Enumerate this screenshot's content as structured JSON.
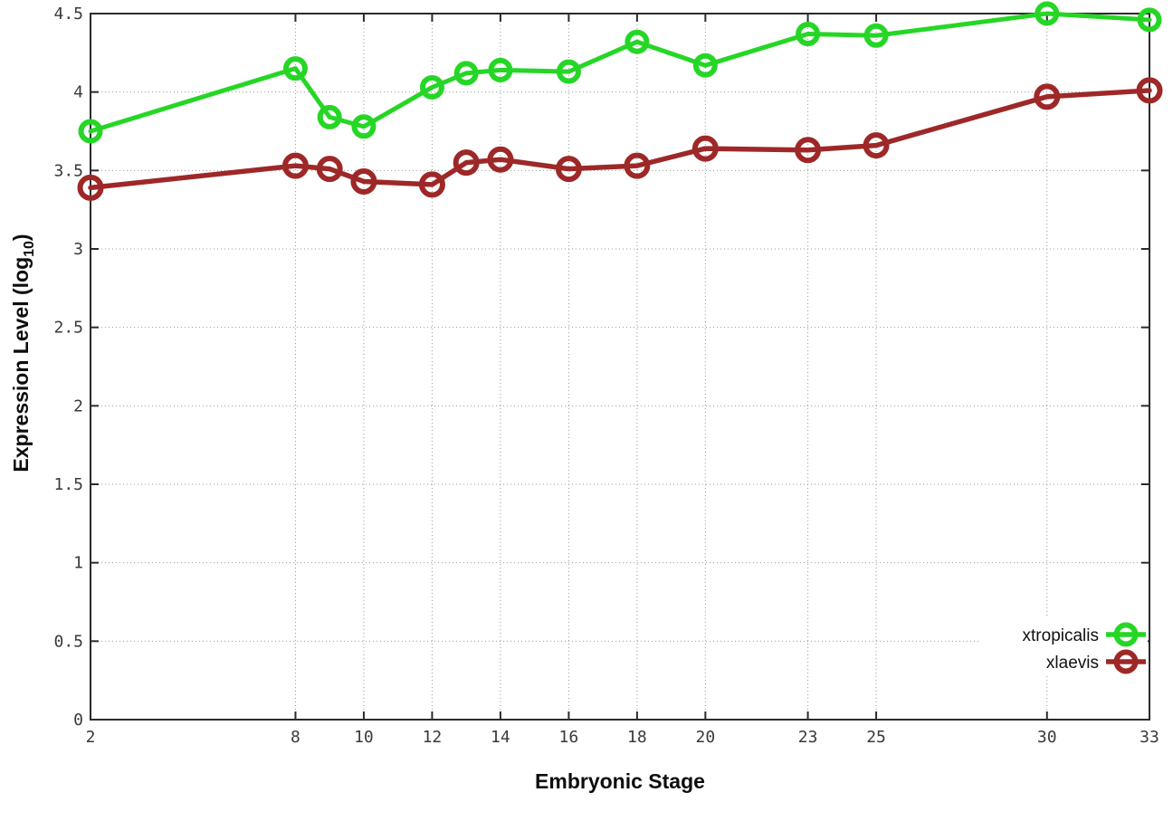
{
  "figure": {
    "xlabel": "Embryonic Stage",
    "ylabel_parts": [
      {
        "text": "Expression Level (log"
      },
      {
        "text": "10",
        "sub": true
      },
      {
        "text": ")"
      }
    ]
  },
  "chart_data": {
    "type": "line",
    "title": "",
    "xlabel": "Embryonic Stage",
    "ylabel": "Expression Level (log10)",
    "x": [
      2,
      8,
      9,
      10,
      12,
      13,
      14,
      16,
      18,
      20,
      23,
      25,
      30,
      33
    ],
    "series": [
      {
        "name": "xtropicalis",
        "color": "#26d626",
        "values": [
          3.75,
          4.15,
          3.84,
          3.78,
          4.03,
          4.12,
          4.14,
          4.13,
          4.32,
          4.17,
          4.37,
          4.36,
          4.5,
          4.46
        ]
      },
      {
        "name": "xlaevis",
        "color": "#9e2828",
        "values": [
          3.39,
          3.53,
          3.51,
          3.43,
          3.41,
          3.55,
          3.57,
          3.51,
          3.53,
          3.64,
          3.63,
          3.66,
          3.97,
          4.01
        ]
      }
    ],
    "xticks": [
      2,
      8,
      10,
      12,
      14,
      16,
      18,
      20,
      23,
      25,
      30,
      33
    ],
    "yticks": [
      0,
      0.5,
      1,
      1.5,
      2,
      2.5,
      3,
      3.5,
      4,
      4.5
    ],
    "xlim": [
      2,
      33
    ],
    "ylim": [
      0,
      4.5
    ],
    "grid": true,
    "legend_position": "bottom-right",
    "marker": "open-circle"
  },
  "style": {
    "background": "#ffffff",
    "axis_color": "#2b2b2b",
    "grid_color": "#9a9a9a",
    "tick_label_color": "#3a3a3a"
  }
}
